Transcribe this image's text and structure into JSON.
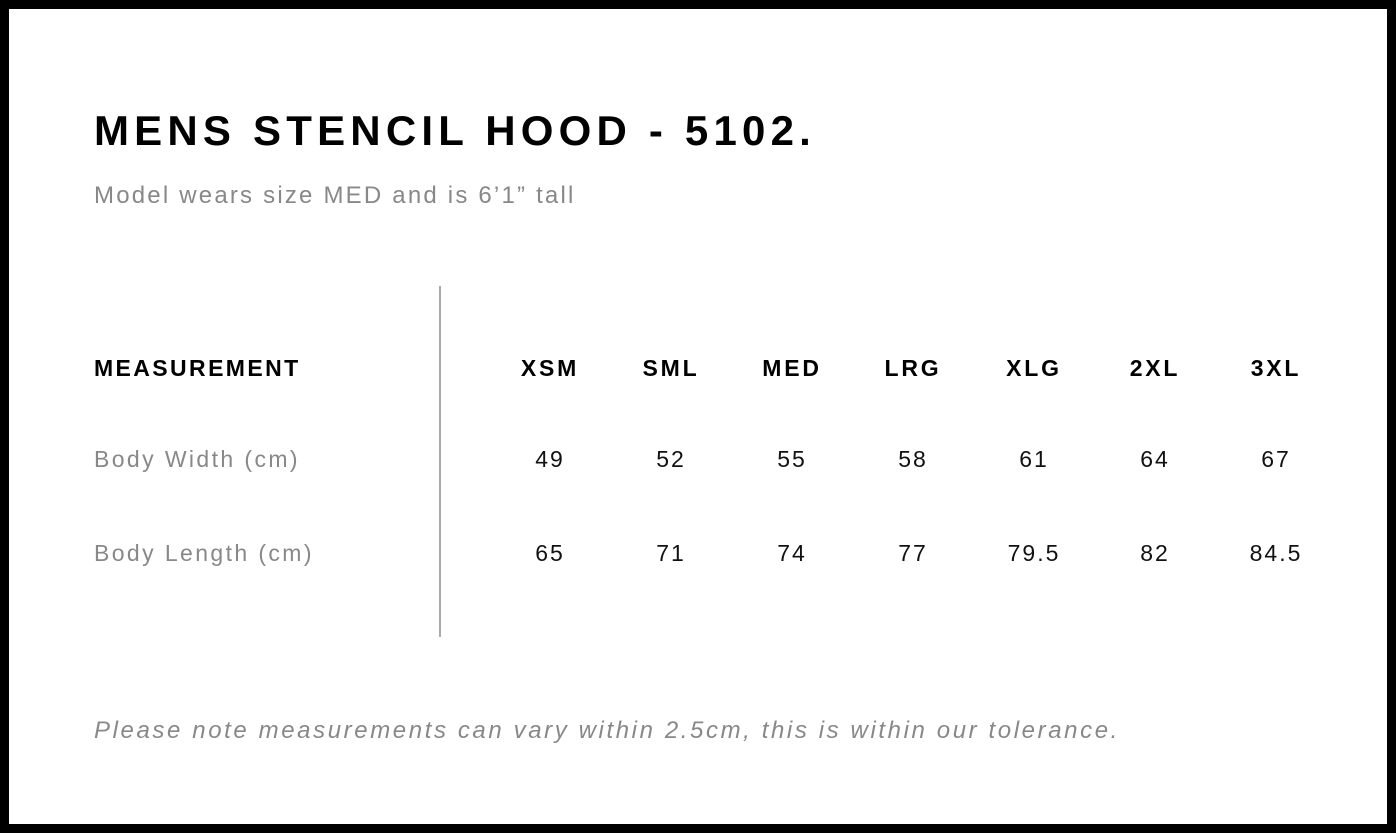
{
  "title": "MENS STENCIL HOOD - 5102.",
  "subtitle": "Model wears size MED and is 6’1” tall",
  "table": {
    "header_label": "MEASUREMENT",
    "sizes": [
      "XSM",
      "SML",
      "MED",
      "LRG",
      "XLG",
      "2XL",
      "3XL"
    ],
    "rows": [
      {
        "label": "Body Width (cm)",
        "values": [
          "49",
          "52",
          "55",
          "58",
          "61",
          "64",
          "67"
        ]
      },
      {
        "label": "Body Length (cm)",
        "values": [
          "65",
          "71",
          "74",
          "77",
          "79.5",
          "82",
          "84.5"
        ]
      }
    ]
  },
  "note": "Please note measurements can vary within 2.5cm, this is within our tolerance."
}
